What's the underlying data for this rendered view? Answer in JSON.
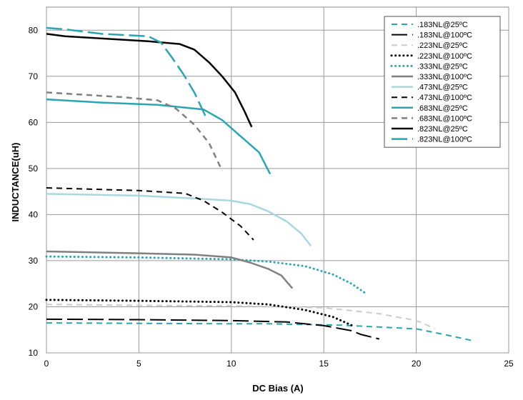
{
  "chart_data": {
    "type": "line",
    "title": "",
    "xlabel": "DC Bias (A)",
    "ylabel": "INDUCTANCE(uH)",
    "xlim": [
      0,
      25
    ],
    "ylim": [
      10,
      85
    ],
    "x_ticks": [
      0,
      5,
      10,
      15,
      20,
      25
    ],
    "y_ticks": [
      10,
      20,
      30,
      40,
      50,
      60,
      70,
      80
    ],
    "grid": true,
    "legend_position": "top-right",
    "series": [
      {
        "name": ".183NL@25ºC",
        "color": "#29a5b4",
        "dash": "dash",
        "width": 2,
        "x": [
          0,
          5,
          10,
          12,
          16,
          20,
          21.5,
          23.1
        ],
        "y": [
          16.5,
          16.4,
          16.3,
          16.3,
          16.0,
          15.2,
          14.0,
          12.6
        ]
      },
      {
        "name": ".183NL@100ºC",
        "color": "#000000",
        "dash": "longdash",
        "width": 2,
        "x": [
          0,
          5,
          10,
          13,
          15,
          16.5,
          17,
          18
        ],
        "y": [
          17.3,
          17.2,
          17.0,
          16.7,
          15.9,
          14.8,
          14.0,
          13.0
        ]
      },
      {
        "name": ".223NL@25ºC",
        "color": "#cccccc",
        "dash": "dash",
        "width": 2,
        "x": [
          0,
          5,
          10,
          15,
          18,
          20,
          21
        ],
        "y": [
          20.5,
          20.3,
          20.2,
          19.8,
          18.5,
          17.0,
          15.3
        ]
      },
      {
        "name": ".223NL@100ºC",
        "color": "#000000",
        "dash": "dot",
        "width": 3,
        "x": [
          0,
          5,
          10,
          12,
          14,
          15.5,
          16.5
        ],
        "y": [
          21.5,
          21.3,
          21.0,
          20.5,
          19.3,
          17.8,
          16.0
        ]
      },
      {
        "name": ".333NL@25ºC",
        "color": "#29a5b4",
        "dash": "dot",
        "width": 3,
        "x": [
          0,
          5,
          10,
          12,
          14,
          15.5,
          16.5,
          17.2
        ],
        "y": [
          30.9,
          30.7,
          30.3,
          29.8,
          28.8,
          27.0,
          25.0,
          23.1
        ]
      },
      {
        "name": ".333NL@100ºC",
        "color": "#808080",
        "dash": "solid",
        "width": 2.5,
        "x": [
          0,
          5,
          8,
          10,
          11,
          12,
          12.7,
          13.3
        ],
        "y": [
          32.0,
          31.6,
          31.3,
          30.7,
          29.6,
          28.2,
          26.8,
          24.0
        ]
      },
      {
        "name": ".473NL@25ºC",
        "color": "#a8d8df",
        "dash": "solid",
        "width": 2.5,
        "x": [
          0,
          5,
          8,
          10,
          11,
          12,
          13,
          13.8,
          14.3
        ],
        "y": [
          44.5,
          44.1,
          43.5,
          43.0,
          42.3,
          40.7,
          38.5,
          35.8,
          33.2
        ]
      },
      {
        "name": ".473NL@100ºC",
        "color": "#000000",
        "dash": "dash",
        "width": 2,
        "x": [
          0,
          5,
          7.5,
          8.5,
          9.5,
          10.5,
          11.2
        ],
        "y": [
          45.8,
          45.2,
          44.6,
          43.0,
          40.5,
          37.5,
          34.5
        ]
      },
      {
        "name": ".683NL@25ºC",
        "color": "#29a5b4",
        "dash": "solid",
        "width": 2.5,
        "x": [
          0,
          3,
          6,
          8.5,
          9.5,
          10.5,
          11.5,
          12.1
        ],
        "y": [
          65.0,
          64.3,
          63.8,
          62.8,
          60.5,
          57.0,
          53.5,
          48.8
        ]
      },
      {
        "name": ".683NL@100ºC",
        "color": "#808080",
        "dash": "dash",
        "width": 2.5,
        "x": [
          0,
          2,
          4,
          6,
          7,
          8,
          8.8,
          9.5
        ],
        "y": [
          66.5,
          66.0,
          65.5,
          64.8,
          63.0,
          59.5,
          55.5,
          49.5
        ]
      },
      {
        "name": ".823NL@25ºC",
        "color": "#000000",
        "dash": "solid",
        "width": 2.5,
        "x": [
          0,
          1,
          3,
          5.5,
          7.2,
          8,
          8.8,
          9.5,
          10.2,
          10.7,
          11.1
        ],
        "y": [
          79.2,
          78.7,
          78.2,
          77.6,
          77.0,
          75.8,
          73.0,
          70.0,
          66.5,
          62.5,
          59.0
        ]
      },
      {
        "name": ".823NL@100ºC",
        "color": "#29a5b4",
        "dash": "longdash",
        "width": 2.5,
        "x": [
          0,
          1,
          3,
          5.5,
          6.2,
          6.8,
          7.4,
          8.0,
          8.7
        ],
        "y": [
          80.5,
          80.2,
          79.2,
          78.7,
          77.3,
          74.0,
          70.5,
          66.5,
          60.5
        ]
      }
    ]
  }
}
